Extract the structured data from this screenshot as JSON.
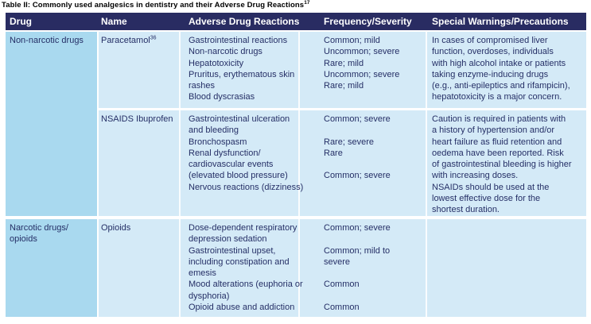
{
  "title": {
    "text": "Table II: Commonly used analgesics in dentistry and their Adverse Drug Reactions",
    "superscript": "17"
  },
  "colors": {
    "header_bg": "#292c62",
    "header_text": "#ffffff",
    "drug_column_bg": "#a9d9ef",
    "body_bg": "#d4eaf7",
    "body_text": "#252f66",
    "title_text": "#000000"
  },
  "table": {
    "headers": [
      "Drug",
      "Name",
      "Adverse Drug Reactions",
      "Frequency/Severity",
      "Special Warnings/Precautions"
    ],
    "groups": [
      {
        "drug_lines": [
          "Non-narcotic drugs"
        ],
        "entries": [
          {
            "name": "Paracetamol",
            "name_sup": "36",
            "adr_lines": [
              "Gastrointestinal reactions",
              "Non-narcotic drugs",
              "Hepatotoxicity",
              "Pruritus, erythematous skin",
              "rashes",
              "Blood dyscrasias"
            ],
            "freq_lines": [
              "Common; mild",
              "Uncommon; severe",
              "Rare; mild",
              "Uncommon; severe",
              "Rare; mild"
            ],
            "warn_lines": [
              "In cases of compromised liver",
              "function, overdoses, individuals",
              "with high alcohol intake or patients",
              "taking enzyme-inducing drugs",
              "(e.g., anti-epileptics and rifampicin),",
              "hepatotoxicity is a major concern."
            ]
          },
          {
            "name": "NSAIDS Ibuprofen",
            "name_sup": "",
            "adr_lines": [
              "Gastrointestinal ulceration",
              "and bleeding",
              "Bronchospasm",
              "Renal dysfunction/",
              "cardiovascular events",
              "(elevated blood pressure)",
              "Nervous reactions (dizziness)"
            ],
            "freq_lines": [
              "Common; severe",
              "",
              "Rare; severe",
              "Rare",
              "",
              "Common; severe"
            ],
            "warn_lines": [
              "Caution is required in patients with",
              "a history of hypertension and/or",
              "heart failure as fluid retention and",
              "oedema have been reported. Risk",
              "of gastrointestinal bleeding is higher",
              "with increasing doses.",
              "NSAIDs should be used at the",
              "lowest effective dose for the",
              "shortest duration."
            ]
          }
        ]
      },
      {
        "drug_lines": [
          "Narcotic drugs/",
          "opioids"
        ],
        "entries": [
          {
            "name": "Opioids",
            "name_sup": "",
            "adr_lines": [
              "Dose-dependent respiratory",
              "depression sedation",
              "Gastrointestinal upset,",
              "including constipation and",
              "emesis",
              "Mood alterations (euphoria or",
              "dysphoria)",
              "Opioid abuse and addiction"
            ],
            "freq_lines": [
              "Common; severe",
              "",
              "Common; mild to",
              "severe",
              "",
              "Common",
              "",
              "Common"
            ],
            "warn_lines": []
          }
        ]
      }
    ]
  }
}
